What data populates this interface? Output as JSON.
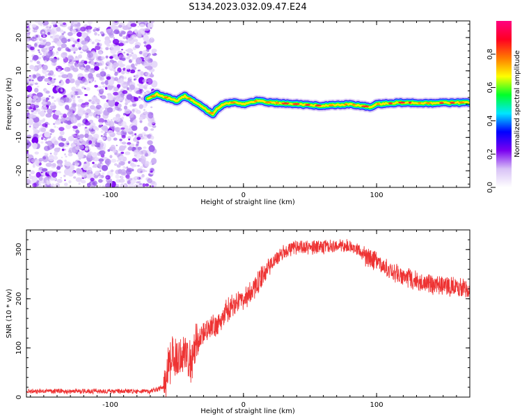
{
  "title": "S134.2023.032.09.47.E24",
  "chart_data": [
    {
      "type": "heatmap",
      "xlabel": "Height of straight line (km)",
      "ylabel": "Frequency (Hz)",
      "xlim": [
        -163,
        170
      ],
      "ylim": [
        -25,
        25
      ],
      "xticks": [
        -100,
        0,
        100
      ],
      "yticks": [
        -20,
        -10,
        0,
        10,
        20
      ],
      "grid": false,
      "colorbar": {
        "label": "Normalized spectral amplitude",
        "range": [
          0,
          1
        ],
        "ticks": [
          "0.0",
          "0.2",
          "0.4",
          "0.6",
          "0.8"
        ],
        "colormap": [
          "#ffffff",
          "#d8c2f6",
          "#7a00f0",
          "#0000ff",
          "#00e6ff",
          "#00ff2a",
          "#ffff00",
          "#ff7a00",
          "#ff0022",
          "#ff0080"
        ]
      },
      "noise_region_x": [
        -163,
        -72
      ],
      "trace": {
        "x": [
          -72,
          -65,
          -58,
          -50,
          -44,
          -38,
          -32,
          -27,
          -23,
          -20,
          -15,
          -8,
          0,
          10,
          20,
          40,
          60,
          80,
          90,
          95,
          100,
          120,
          140,
          170
        ],
        "y": [
          1.5,
          3,
          2,
          1,
          2.5,
          1,
          -0.5,
          -2,
          -3,
          -1.5,
          0,
          0.5,
          0,
          1,
          0.5,
          0,
          -0.5,
          0,
          -0.5,
          -1,
          0,
          0.5,
          0.3,
          0.5
        ]
      }
    },
    {
      "type": "line",
      "xlabel": "Height of straight line (km)",
      "ylabel": "SNR (10 * v/v)",
      "xlim": [
        -163,
        170
      ],
      "ylim": [
        0,
        340
      ],
      "xticks": [
        -100,
        0,
        100
      ],
      "yticks": [
        0,
        100,
        200,
        300
      ],
      "series": [
        {
          "color": "#ee3333",
          "x": [
            -163,
            -110,
            -70,
            -60,
            -55,
            -45,
            -40,
            -35,
            -30,
            -20,
            -10,
            0,
            10,
            20,
            30,
            40,
            60,
            80,
            90,
            100,
            110,
            120,
            140,
            160,
            170
          ],
          "y": [
            12,
            12,
            12,
            20,
            75,
            90,
            80,
            110,
            130,
            150,
            180,
            200,
            230,
            270,
            295,
            305,
            305,
            310,
            290,
            275,
            255,
            245,
            230,
            225,
            215
          ]
        }
      ]
    }
  ]
}
